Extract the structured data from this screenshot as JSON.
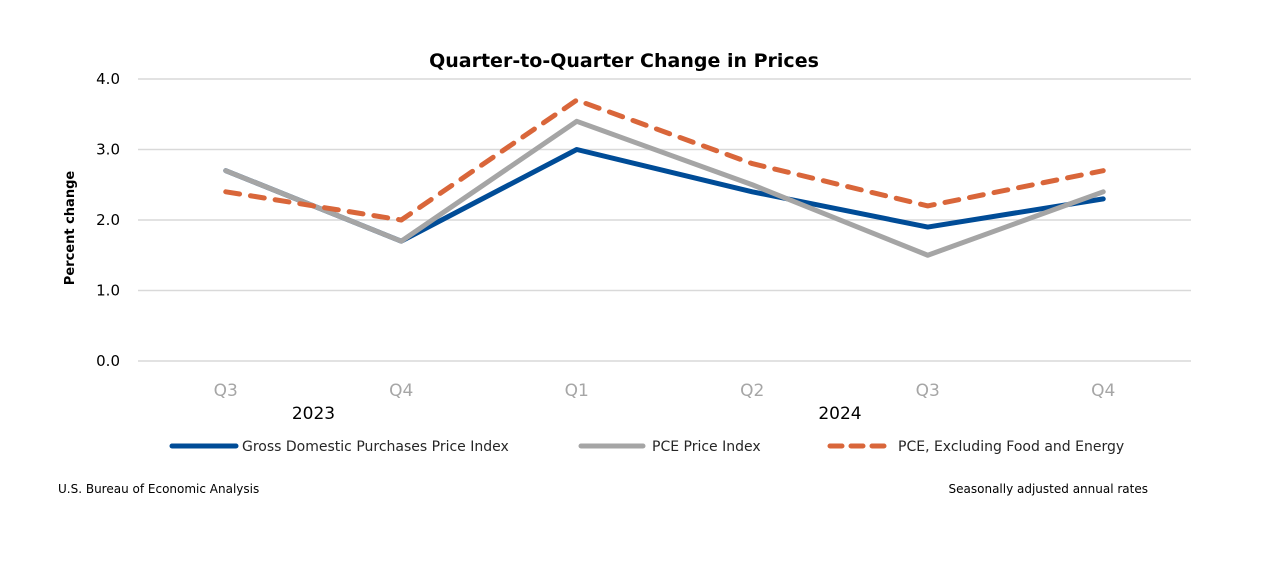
{
  "chart_data": {
    "type": "line",
    "title": "Quarter-to-Quarter Change in Prices",
    "xlabel": "",
    "ylabel": "Percent change",
    "ylim": [
      0,
      4
    ],
    "yticks": [
      "0.0",
      "1.0",
      "2.0",
      "3.0",
      "4.0"
    ],
    "ytick_values": [
      0,
      1,
      2,
      3,
      4
    ],
    "grid": true,
    "categories": [
      "Q3",
      "Q4",
      "Q1",
      "Q2",
      "Q3",
      "Q4"
    ],
    "year_groups": [
      {
        "label": "2023",
        "start": 0,
        "end": 1
      },
      {
        "label": "2024",
        "start": 2,
        "end": 5
      }
    ],
    "legend_position": "bottom",
    "series": [
      {
        "name": "Gross Domestic Purchases Price Index",
        "color": "#004c97",
        "dash": "solid",
        "values": [
          2.7,
          1.7,
          3.0,
          2.4,
          1.9,
          2.3
        ]
      },
      {
        "name": "PCE Price Index",
        "color": "#a5a5a5",
        "dash": "solid",
        "values": [
          2.7,
          1.7,
          3.4,
          2.5,
          1.5,
          2.4
        ]
      },
      {
        "name": "PCE, Excluding Food and Energy",
        "color": "#d9663a",
        "dash": "dashed",
        "values": [
          2.4,
          2.0,
          3.7,
          2.8,
          2.2,
          2.7
        ]
      }
    ]
  },
  "footer": {
    "source": "U.S. Bureau of Economic Analysis",
    "note": "Seasonally adjusted annual rates"
  }
}
